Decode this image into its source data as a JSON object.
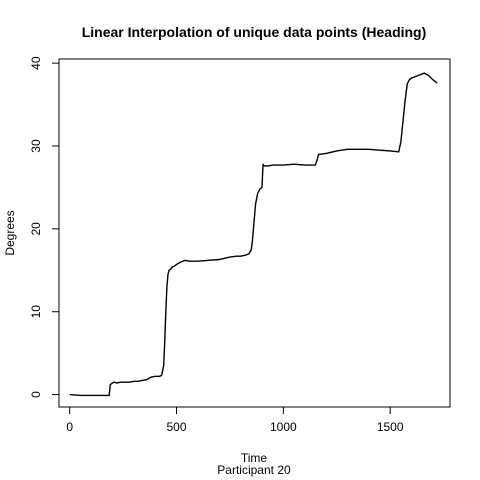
{
  "chart_data": {
    "type": "line",
    "title": "Linear Interpolation of unique data points (Heading)",
    "xlabel": "Time",
    "ylabel": "Degrees",
    "subtitle": "Participant  20",
    "xlim": [
      -50,
      1780
    ],
    "ylim": [
      -1.5,
      40.5
    ],
    "xticks": [
      0,
      500,
      1000,
      1500
    ],
    "yticks": [
      0,
      10,
      20,
      30,
      40
    ],
    "grid": false,
    "series": [
      {
        "x": [
          0,
          50,
          100,
          150,
          185,
          190,
          200,
          210,
          220,
          240,
          260,
          280,
          300,
          320,
          340,
          360,
          380,
          400,
          420,
          430,
          440,
          445,
          450,
          455,
          460,
          465,
          470,
          475,
          480,
          490,
          500,
          520,
          540,
          560,
          580,
          600,
          650,
          700,
          750,
          780,
          800,
          820,
          840,
          850,
          855,
          860,
          865,
          870,
          880,
          890,
          900,
          905,
          910,
          920,
          930,
          950,
          1000,
          1050,
          1100,
          1150,
          1160,
          1165,
          1170,
          1200,
          1250,
          1300,
          1350,
          1400,
          1450,
          1500,
          1540,
          1550,
          1560,
          1570,
          1580,
          1590,
          1600,
          1620,
          1640,
          1660,
          1680,
          1700,
          1720
        ],
        "y": [
          0,
          -0.1,
          -0.1,
          -0.1,
          -0.1,
          1.2,
          1.4,
          1.5,
          1.4,
          1.5,
          1.5,
          1.5,
          1.6,
          1.6,
          1.7,
          1.8,
          2.1,
          2.2,
          2.2,
          2.3,
          3.5,
          6.5,
          10,
          13,
          14.5,
          15,
          15.1,
          15.2,
          15.4,
          15.5,
          15.7,
          16,
          16.2,
          16.1,
          16.1,
          16.1,
          16.2,
          16.3,
          16.6,
          16.7,
          16.7,
          16.8,
          17,
          17.5,
          18.5,
          20,
          21.5,
          23,
          24.3,
          24.8,
          25,
          27.8,
          27.6,
          27.6,
          27.6,
          27.7,
          27.7,
          27.8,
          27.7,
          27.7,
          28.5,
          29,
          29,
          29.1,
          29.4,
          29.6,
          29.6,
          29.6,
          29.5,
          29.4,
          29.3,
          30.5,
          33,
          35.5,
          37.5,
          38,
          38.2,
          38.4,
          38.6,
          38.8,
          38.5,
          38,
          37.6
        ]
      }
    ]
  }
}
